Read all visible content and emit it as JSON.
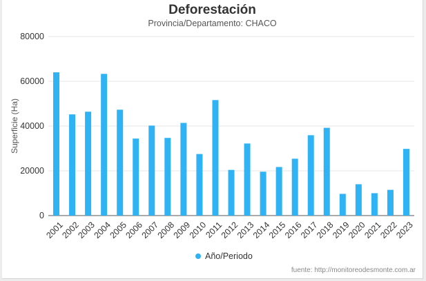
{
  "chart_data": {
    "type": "bar",
    "title": "Deforestación",
    "subtitle": "Provincia/Departamento: CHACO",
    "ylabel": "Superficie (Ha)",
    "xlabel": "",
    "ylim": [
      0,
      80000
    ],
    "yticks": [
      0,
      20000,
      40000,
      60000,
      80000
    ],
    "grid": true,
    "legend_position": "bottom",
    "categories": [
      "2001",
      "2002",
      "2003",
      "2004",
      "2005",
      "2006",
      "2007",
      "2008",
      "2009",
      "2010",
      "2011",
      "2012",
      "2013",
      "2014",
      "2015",
      "2016",
      "2017",
      "2018",
      "2019",
      "2020",
      "2021",
      "2022",
      "2023"
    ],
    "series": [
      {
        "name": "Año/Periodo",
        "color": "#2fb3f5",
        "values": [
          64000,
          45200,
          46400,
          63300,
          47300,
          34400,
          40200,
          34700,
          41400,
          27500,
          51600,
          20400,
          32200,
          19600,
          21700,
          25400,
          35900,
          39200,
          9700,
          14000,
          10000,
          11500,
          29800
        ]
      }
    ],
    "source": "fuente: http://monitoreodesmonte.com.ar"
  }
}
